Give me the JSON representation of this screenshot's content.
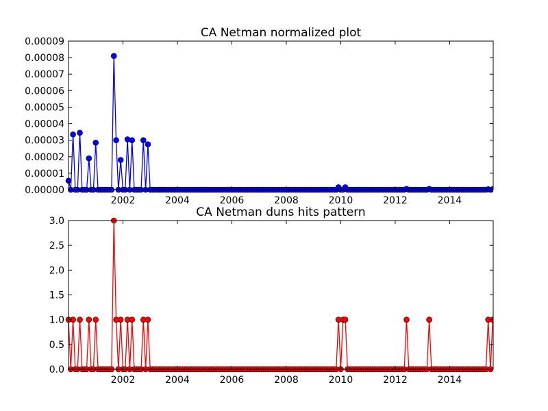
{
  "chart_data": [
    {
      "type": "line",
      "title": "CA Netman normalized plot",
      "xlabel": "",
      "ylabel": "",
      "xlim": [
        2000.0,
        2015.6
      ],
      "ylim": [
        0,
        9e-05
      ],
      "xticks": [
        2002,
        2004,
        2006,
        2008,
        2010,
        2012,
        2014
      ],
      "xtick_labels": [
        "2002",
        "2004",
        "2006",
        "2008",
        "2010",
        "2012",
        "2014"
      ],
      "yticks": [
        0,
        1e-05,
        2e-05,
        3e-05,
        4e-05,
        5e-05,
        6e-05,
        7e-05,
        8e-05,
        9e-05
      ],
      "ytick_labels": [
        "0.00000",
        "0.00001",
        "0.00002",
        "0.00003",
        "0.00004",
        "0.00005",
        "0.00006",
        "0.00007",
        "0.00008",
        "0.00009"
      ],
      "grid": false,
      "series": [
        {
          "color": "#0000ff",
          "marker": "circle",
          "x_start": 2000.0,
          "x_step": 0.0833333,
          "baseline": 0,
          "spikes": [
            [
              0,
              5.5e-06
            ],
            [
              2,
              3.35e-05
            ],
            [
              5,
              3.45e-05
            ],
            [
              9,
              1.9e-05
            ],
            [
              12,
              2.85e-05
            ],
            [
              20,
              8.1e-05
            ],
            [
              21,
              3e-05
            ],
            [
              23,
              1.8e-05
            ],
            [
              26,
              3.05e-05
            ],
            [
              28,
              3e-05
            ],
            [
              33,
              3e-05
            ],
            [
              35,
              2.75e-05
            ],
            [
              119,
              1.5e-06
            ],
            [
              122,
              1.5e-06
            ],
            [
              149,
              5e-07
            ],
            [
              159,
              5e-07
            ],
            [
              185,
              3e-07
            ],
            [
              187,
              3e-07
            ]
          ],
          "count": 188
        }
      ]
    },
    {
      "type": "line",
      "title": "CA Netman duns hits pattern",
      "xlabel": "",
      "ylabel": "",
      "xlim": [
        2000.0,
        2015.6
      ],
      "ylim": [
        0,
        3.0
      ],
      "xticks": [
        2002,
        2004,
        2006,
        2008,
        2010,
        2012,
        2014
      ],
      "xtick_labels": [
        "2002",
        "2004",
        "2006",
        "2008",
        "2010",
        "2012",
        "2014"
      ],
      "yticks": [
        0,
        0.5,
        1.0,
        1.5,
        2.0,
        2.5,
        3.0
      ],
      "ytick_labels": [
        "0.0",
        "0.5",
        "1.0",
        "1.5",
        "2.0",
        "2.5",
        "3.0"
      ],
      "grid": false,
      "series": [
        {
          "color": "#ff0000",
          "marker": "circle",
          "x_start": 2000.0,
          "x_step": 0.0833333,
          "baseline": 0,
          "spikes": [
            [
              0,
              1
            ],
            [
              2,
              1
            ],
            [
              5,
              1
            ],
            [
              9,
              1
            ],
            [
              12,
              1
            ],
            [
              20,
              3
            ],
            [
              21,
              1
            ],
            [
              23,
              1
            ],
            [
              26,
              1
            ],
            [
              28,
              1
            ],
            [
              33,
              1
            ],
            [
              35,
              1
            ],
            [
              119,
              1
            ],
            [
              121,
              1
            ],
            [
              122,
              1
            ],
            [
              149,
              1
            ],
            [
              159,
              1
            ],
            [
              185,
              1
            ],
            [
              187,
              1
            ]
          ],
          "count": 188
        }
      ]
    }
  ]
}
